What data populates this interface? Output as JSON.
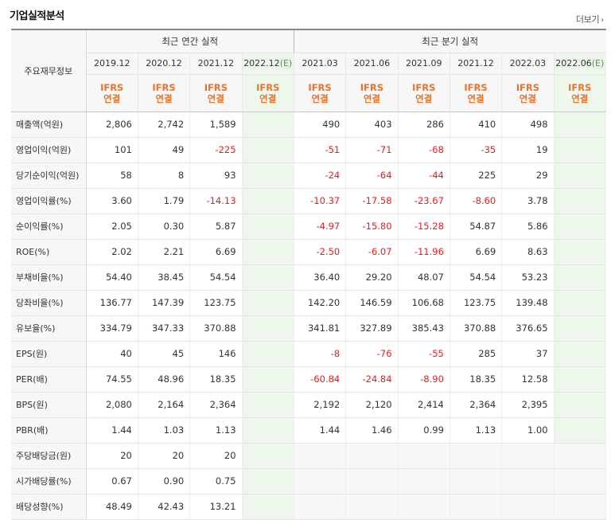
{
  "title": "기업실적분석",
  "more_label": "더보기",
  "header": {
    "row_label": "주요재무정보",
    "annual_label": "최근 연간 실적",
    "quarter_label": "최근 분기 실적",
    "annual_periods": [
      "2019.12",
      "2020.12",
      "2021.12",
      "2022.12"
    ],
    "quarter_periods": [
      "2021.03",
      "2021.06",
      "2021.09",
      "2021.12",
      "2022.03",
      "2022.06"
    ],
    "estimate_mark": "(E)",
    "ifrs_top": "IFRS",
    "ifrs_bottom": "연결"
  },
  "rows": [
    {
      "label": "매출액(억원)",
      "annual": [
        "2,806",
        "2,742",
        "1,589",
        ""
      ],
      "quarter": [
        "490",
        "403",
        "286",
        "410",
        "498",
        ""
      ]
    },
    {
      "label": "영업이익(억원)",
      "annual": [
        "101",
        "49",
        "-225",
        ""
      ],
      "quarter": [
        "-51",
        "-71",
        "-68",
        "-35",
        "19",
        ""
      ]
    },
    {
      "label": "당기순이익(억원)",
      "annual": [
        "58",
        "8",
        "93",
        ""
      ],
      "quarter": [
        "-24",
        "-64",
        "-44",
        "225",
        "29",
        ""
      ]
    },
    {
      "label": "영업이익률(%)",
      "annual": [
        "3.60",
        "1.79",
        "-14.13",
        ""
      ],
      "quarter": [
        "-10.37",
        "-17.58",
        "-23.67",
        "-8.60",
        "3.78",
        ""
      ]
    },
    {
      "label": "순이익률(%)",
      "annual": [
        "2.05",
        "0.30",
        "5.87",
        ""
      ],
      "quarter": [
        "-4.97",
        "-15.80",
        "-15.28",
        "54.87",
        "5.86",
        ""
      ]
    },
    {
      "label": "ROE(%)",
      "annual": [
        "2.02",
        "2.21",
        "6.69",
        ""
      ],
      "quarter": [
        "-2.50",
        "-6.07",
        "-11.96",
        "6.69",
        "8.63",
        ""
      ]
    },
    {
      "label": "부채비율(%)",
      "annual": [
        "54.40",
        "38.45",
        "54.54",
        ""
      ],
      "quarter": [
        "36.40",
        "29.20",
        "48.07",
        "54.54",
        "53.23",
        ""
      ]
    },
    {
      "label": "당좌비율(%)",
      "annual": [
        "136.77",
        "147.39",
        "123.75",
        ""
      ],
      "quarter": [
        "142.20",
        "146.59",
        "106.68",
        "123.75",
        "139.48",
        ""
      ]
    },
    {
      "label": "유보율(%)",
      "annual": [
        "334.79",
        "347.33",
        "370.88",
        ""
      ],
      "quarter": [
        "341.81",
        "327.89",
        "385.43",
        "370.88",
        "376.65",
        ""
      ]
    },
    {
      "label": "EPS(원)",
      "annual": [
        "40",
        "45",
        "146",
        ""
      ],
      "quarter": [
        "-8",
        "-76",
        "-55",
        "285",
        "37",
        ""
      ]
    },
    {
      "label": "PER(배)",
      "annual": [
        "74.55",
        "48.96",
        "18.35",
        ""
      ],
      "quarter": [
        "-60.84",
        "-24.84",
        "-8.90",
        "18.35",
        "12.58",
        ""
      ]
    },
    {
      "label": "BPS(원)",
      "annual": [
        "2,080",
        "2,164",
        "2,364",
        ""
      ],
      "quarter": [
        "2,192",
        "2,120",
        "2,414",
        "2,364",
        "2,395",
        ""
      ]
    },
    {
      "label": "PBR(배)",
      "annual": [
        "1.44",
        "1.03",
        "1.13",
        ""
      ],
      "quarter": [
        "1.44",
        "1.46",
        "0.99",
        "1.13",
        "1.00",
        ""
      ]
    },
    {
      "label": "주당배당금(원)",
      "annual": [
        "20",
        "20",
        "20",
        ""
      ],
      "quarter": [
        "",
        "",
        "",
        "",
        "",
        ""
      ]
    },
    {
      "label": "시가배당률(%)",
      "annual": [
        "0.67",
        "0.90",
        "0.75",
        ""
      ],
      "quarter": [
        "",
        "",
        "",
        "",
        "",
        ""
      ]
    },
    {
      "label": "배당성향(%)",
      "annual": [
        "48.49",
        "42.43",
        "13.21",
        ""
      ],
      "quarter": [
        "",
        "",
        "",
        "",
        "",
        ""
      ]
    }
  ],
  "colors": {
    "ifrs": "#e8732c",
    "negative": "#e02020",
    "estimate_bg": "#eef7ec",
    "estimate_mark": "#4a9a3a"
  }
}
